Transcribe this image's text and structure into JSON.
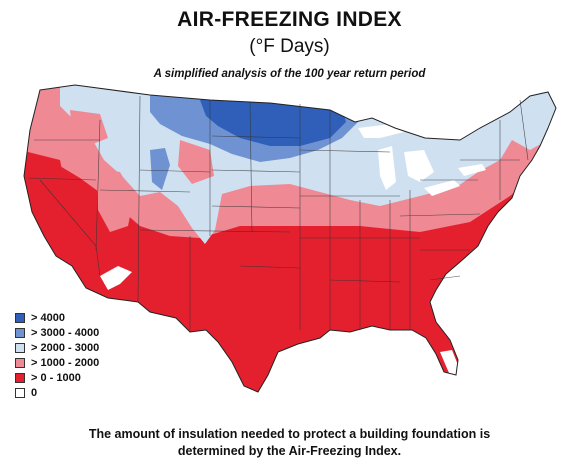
{
  "header": {
    "title": "AIR-FREEZING INDEX",
    "units": "(°F Days)",
    "tagline": "A simplified analysis of the 100 year return period"
  },
  "legend": [
    {
      "label": "> 4000",
      "color": "#2f5fb8"
    },
    {
      "label": "> 3000 - 4000",
      "color": "#6f93d2"
    },
    {
      "label": "> 2000 - 3000",
      "color": "#cfe0f1"
    },
    {
      "label": "> 1000 - 2000",
      "color": "#ef8a95"
    },
    {
      "label": "> 0 - 1000",
      "color": "#e5202e"
    },
    {
      "label": "0",
      "color": "#ffffff"
    }
  ],
  "footer": {
    "line1": "The amount of insulation needed to protect a building foundation is",
    "line2": "determined by the Air-Freezing Index."
  }
}
